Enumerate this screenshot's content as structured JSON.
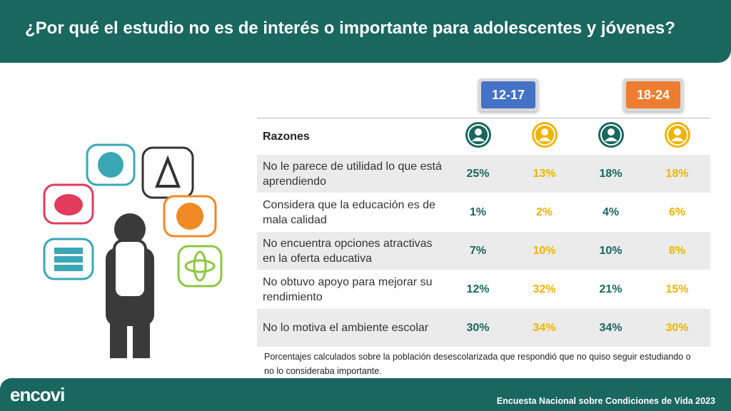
{
  "header": {
    "title": "¿Por qué el estudio no es de interés o importante para adolescentes y jóvenes?"
  },
  "groups": [
    "12-17",
    "18-24"
  ],
  "table": {
    "header": "Razones",
    "rows": [
      [
        "No le parece de utilidad lo que está aprendiendo",
        "25%",
        "13%",
        "18%",
        "18%"
      ],
      [
        "Considera que la educación es de mala calidad",
        "1%",
        "2%",
        "4%",
        "6%"
      ],
      [
        "No encuentra opciones atractivas en la oferta educativa",
        "7%",
        "10%",
        "10%",
        "8%"
      ],
      [
        "No obtuvo apoyo para mejorar su rendimiento",
        "12%",
        "32%",
        "21%",
        "15%"
      ],
      [
        "No lo motiva el ambiente escolar",
        "30%",
        "34%",
        "34%",
        "30%"
      ]
    ]
  },
  "footnote": "Porcentajes calculados sobre la población desescolarizada que respondió que no quiso seguir estudiando o no lo consideraba importante.",
  "footer": {
    "logo": "encovi",
    "source": "Encuesta Nacional sobre Condiciones de Vida 2023"
  }
}
